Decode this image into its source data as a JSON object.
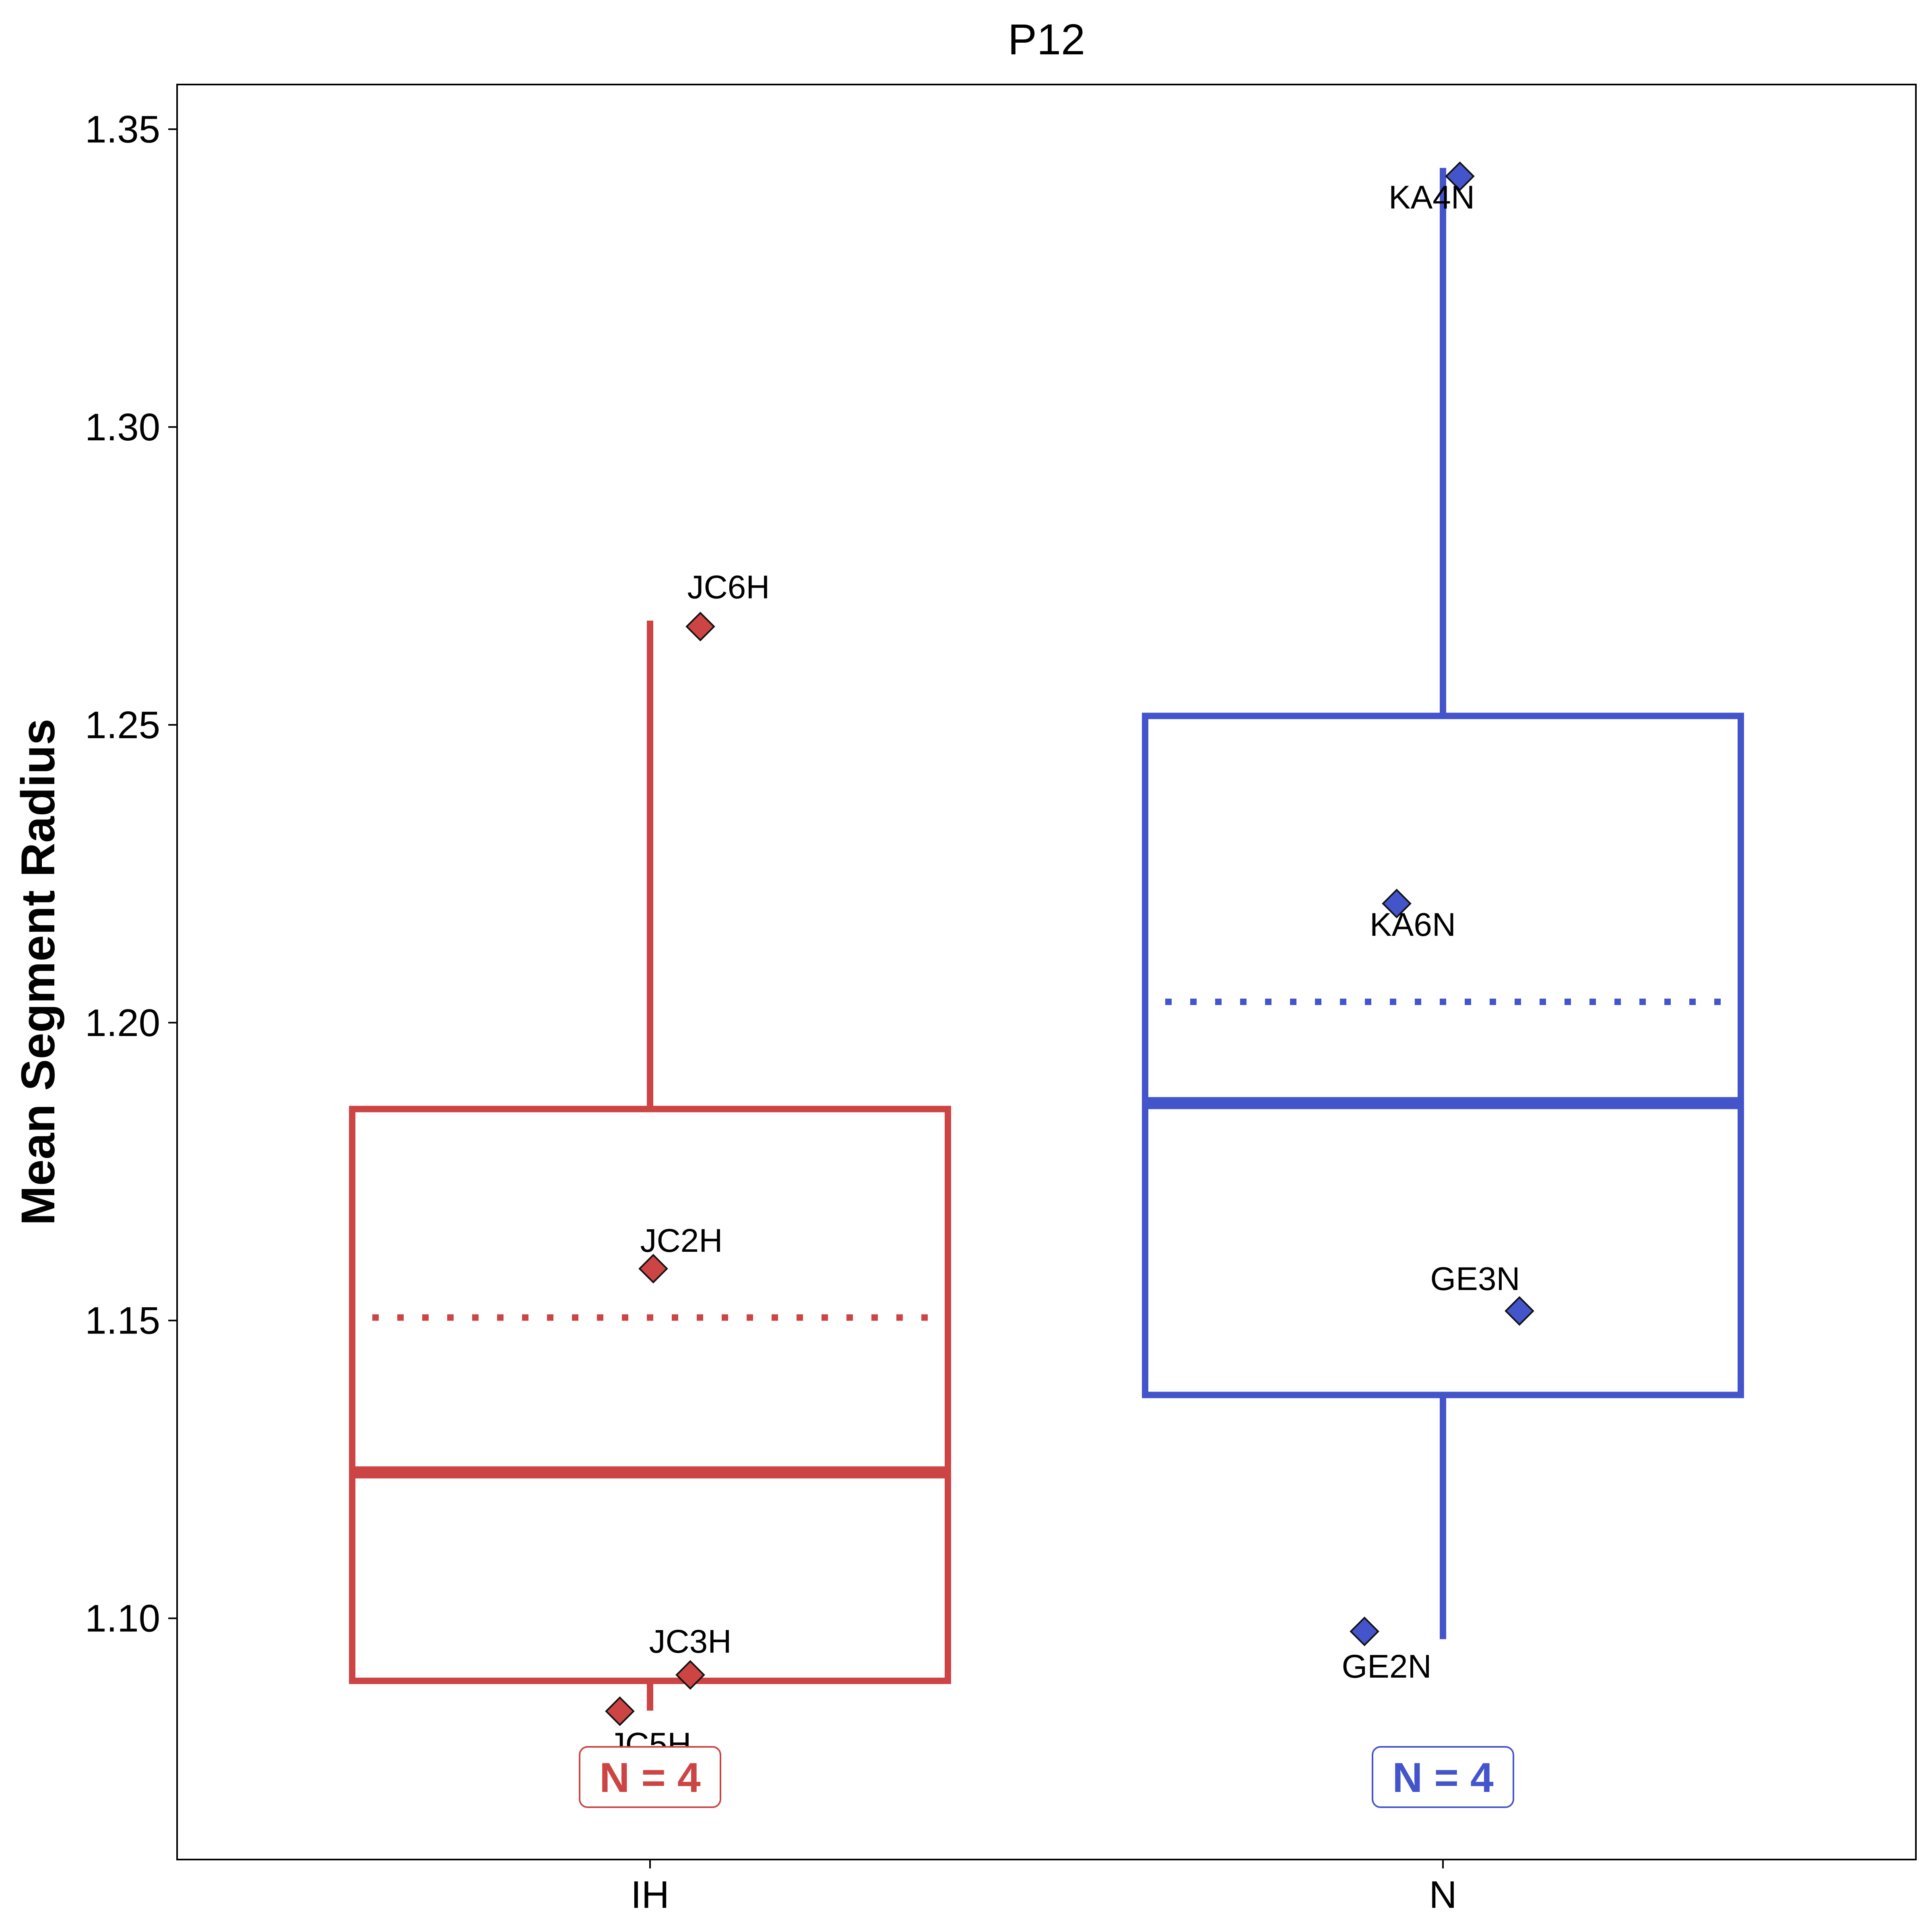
{
  "chart_data": {
    "type": "box",
    "title": "P12",
    "xlabel": "",
    "ylabel": "Mean Segment Radius",
    "ylim": [
      1.0595,
      1.3575
    ],
    "yticks": [
      "1.10",
      "1.15",
      "1.20",
      "1.25",
      "1.30",
      "1.35"
    ],
    "ytick_values": [
      1.1,
      1.15,
      1.2,
      1.25,
      1.3,
      1.35
    ],
    "grid": false,
    "legend": "none",
    "categories": [
      "IH",
      "N"
    ],
    "groups": [
      {
        "category": "IH",
        "color": "#CC4444",
        "whisker_low": 1.0845,
        "q1": 1.0895,
        "median": 1.1245,
        "q3": 1.1855,
        "whisker_high": 1.2675,
        "mean": 1.1505,
        "n_label": "N = 4",
        "points": [
          {
            "label": "JC6H",
            "value": 1.2665
          },
          {
            "label": "JC2H",
            "value": 1.1587
          },
          {
            "label": "JC3H",
            "value": 1.0905
          },
          {
            "label": "JC5H",
            "value": 1.0844
          }
        ]
      },
      {
        "category": "N",
        "color": "#4455CC",
        "whisker_low": 1.0965,
        "q1": 1.1375,
        "median": 1.1865,
        "q3": 1.2515,
        "whisker_high": 1.3435,
        "mean": 1.2035,
        "n_label": "N = 4",
        "points": [
          {
            "label": "KA4N",
            "value": 1.3421
          },
          {
            "label": "KA6N",
            "value": 1.22
          },
          {
            "label": "GE3N",
            "value": 1.1516
          },
          {
            "label": "GE2N",
            "value": 1.0978
          }
        ]
      }
    ]
  }
}
